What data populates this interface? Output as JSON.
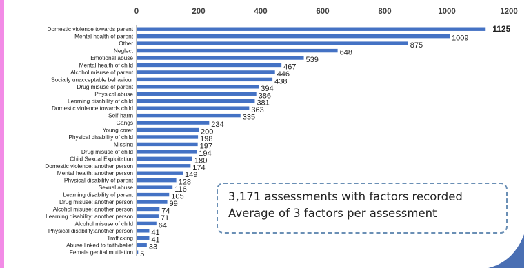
{
  "chart_data": {
    "type": "bar",
    "orientation": "horizontal",
    "categories": [
      "Domestic violence towards parent",
      "Mental health of parent",
      "Other",
      "Neglect",
      "Emotional abuse",
      "Mental health of child",
      "Alcohol misuse of parent",
      "Socially unacceptable behaviour",
      "Drug misuse of parent",
      "Physical abuse",
      "Learning disability of child",
      "Domestic violence towards child",
      "Self-harm",
      "Gangs",
      "Young carer",
      "Physical disability of child",
      "Missing",
      "Drug misuse of child",
      "Child Sexual Exploitation",
      "Domestic violence: another person",
      "Mental health: another person",
      "Physical disability of parent",
      "Sexual abuse",
      "Learning disability of parent",
      "Drug misuse: another person",
      "Alcohol misuse: another person",
      "Learning disability: another person",
      "Alcohol misuse of child",
      "Physical disability:another person",
      "Trafficking",
      "Abuse linked to faith/belief",
      "Female genital mutilation"
    ],
    "values": [
      1125,
      1009,
      875,
      648,
      539,
      467,
      446,
      438,
      394,
      386,
      381,
      363,
      335,
      234,
      200,
      198,
      197,
      194,
      180,
      174,
      149,
      128,
      116,
      105,
      99,
      74,
      71,
      64,
      41,
      41,
      33,
      5
    ],
    "xlim": [
      0,
      1200
    ],
    "x_ticks": [
      0,
      200,
      400,
      600,
      800,
      1000,
      1200
    ],
    "x_tick_labels": [
      "0",
      "200",
      "400",
      "600",
      "800",
      "1000",
      "1200"
    ],
    "x_axis_position": "top",
    "grid": false,
    "bar_color": "#4472c4",
    "highlight_color": "#1f3864",
    "title": "",
    "xlabel": "",
    "ylabel": ""
  },
  "callout": {
    "line1": "3,171 assessments with factors recorded",
    "line2": "Average of 3 factors per assessment",
    "border_color": "#6a8fb5"
  },
  "frame": {
    "left_border_color": "#f28be6",
    "corner_color": "#4a6fb3"
  }
}
